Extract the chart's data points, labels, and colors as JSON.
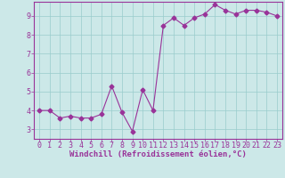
{
  "x": [
    0,
    1,
    2,
    3,
    4,
    5,
    6,
    7,
    8,
    9,
    10,
    11,
    12,
    13,
    14,
    15,
    16,
    17,
    18,
    19,
    20,
    21,
    22,
    23
  ],
  "y": [
    4.0,
    4.0,
    3.6,
    3.7,
    3.6,
    3.6,
    3.8,
    5.3,
    3.9,
    2.9,
    5.1,
    4.0,
    8.5,
    8.9,
    8.5,
    8.9,
    9.1,
    9.6,
    9.3,
    9.1,
    9.3,
    9.3,
    9.2,
    9.0
  ],
  "line_color": "#993399",
  "marker": "D",
  "markersize": 2.5,
  "linewidth": 0.8,
  "bg_color": "#cce8e8",
  "grid_color": "#99cccc",
  "xlabel": "Windchill (Refroidissement éolien,°C)",
  "xlabel_fontsize": 6.5,
  "xlabel_color": "#993399",
  "ylabel_ticks": [
    3,
    4,
    5,
    6,
    7,
    8,
    9
  ],
  "xlim": [
    -0.5,
    23.5
  ],
  "ylim": [
    2.5,
    9.75
  ],
  "tick_fontsize": 6,
  "tick_color": "#993399",
  "grid_linewidth": 0.5,
  "spine_color": "#993399"
}
